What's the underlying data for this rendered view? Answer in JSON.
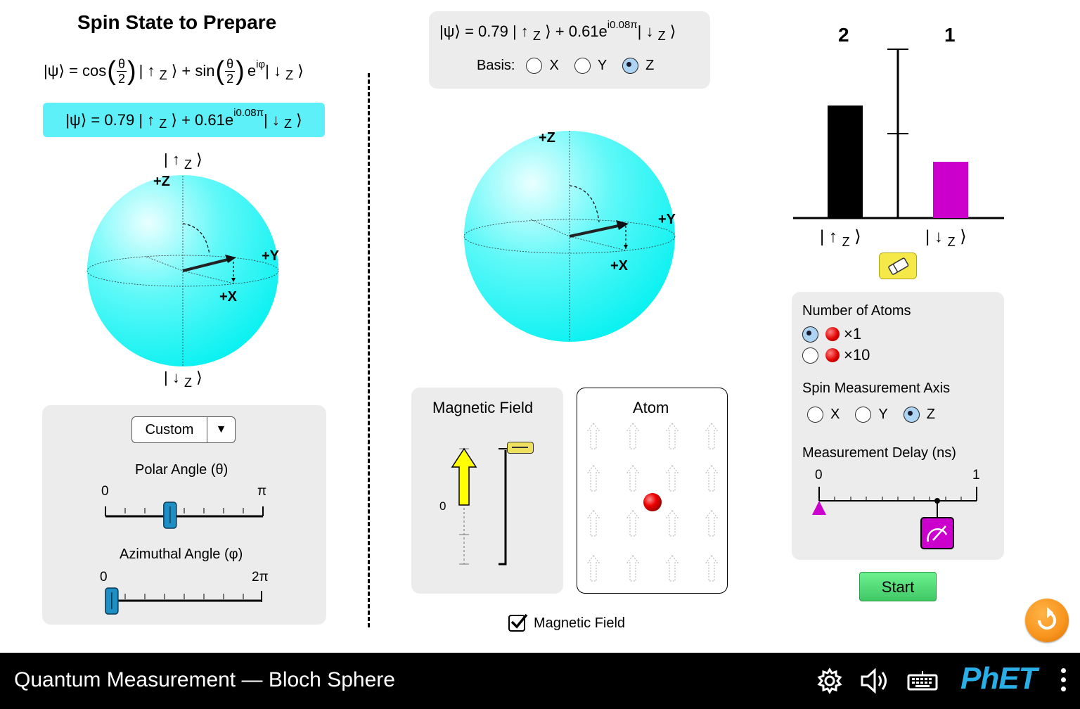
{
  "left": {
    "title": "Spin State to Prepare",
    "general_equation": {
      "psi": "|ψ⟩ = cos",
      "theta": "θ",
      "two": "2",
      "up_ket": "| ↑",
      "z": "Z",
      "ket_close": "⟩ + sin",
      "exp": "e",
      "exp_sup": "iφ",
      "down_ket": "| ↓",
      "ket_close2": "⟩"
    },
    "state": {
      "prefix": "|ψ⟩ = 0.79 | ↑",
      "z": "Z",
      "mid": "⟩ + 0.61e",
      "sup": "i0.08π",
      "down": " | ↓",
      "z2": "Z",
      "end": "⟩"
    },
    "sphere": {
      "top_ket": "| ↑",
      "bottom_ket": "| ↓",
      "z": "Z",
      "ket_end": "⟩",
      "plus_z": "+Z",
      "plus_y": "+Y",
      "plus_x": "+X"
    },
    "preset": "Custom",
    "polar": {
      "label": "Polar Angle (θ)",
      "min": "0",
      "max": "π",
      "value": 0.41
    },
    "azimuthal": {
      "label": "Azimuthal Angle (φ)",
      "min": "0",
      "max": "2π",
      "value": 0.04
    }
  },
  "middle": {
    "state": {
      "prefix": "|ψ⟩ = 0.79 | ↑",
      "z": "Z",
      "mid": "⟩ + 0.61e",
      "sup": "i0.08π",
      "down": " | ↓",
      "z2": "Z",
      "end": "⟩"
    },
    "basis_label": "Basis:",
    "basis_options": [
      "X",
      "Y",
      "Z"
    ],
    "basis_selected": "Z",
    "sphere": {
      "plus_z": "+Z",
      "plus_y": "+Y",
      "plus_x": "+X"
    },
    "magnetic_field_title": "Magnetic Field",
    "field_zero": "0",
    "atom_title": "Atom",
    "magnetic_field_checkbox": "Magnetic Field",
    "magnetic_field_checked": true
  },
  "right": {
    "count_up": "2",
    "count_down": "1",
    "bar_up_ket": "| ↑",
    "bar_down_ket": "| ↓",
    "z": "Z",
    "ket_end": "⟩",
    "bar_up_value": 2,
    "bar_down_value": 1,
    "atoms_label": "Number of Atoms",
    "atoms_option1": "×1",
    "atoms_option2": "×10",
    "axis_label": "Spin Measurement Axis",
    "axis_options": [
      "X",
      "Y",
      "Z"
    ],
    "axis_selected": "Z",
    "delay_label": "Measurement Delay (ns)",
    "delay_min": "0",
    "delay_max": "1",
    "delay_value": 0.75,
    "start_label": "Start"
  },
  "navbar": {
    "title": "Quantum Measurement — Bloch Sphere",
    "logo": "PhET"
  },
  "colors": {
    "sphere": "#00f5f5",
    "state_box": "#5ef0f8",
    "bar_up": "#000000",
    "bar_down": "#cc00cc",
    "start": "#4cdc72",
    "accent_orange": "#f7941d"
  }
}
